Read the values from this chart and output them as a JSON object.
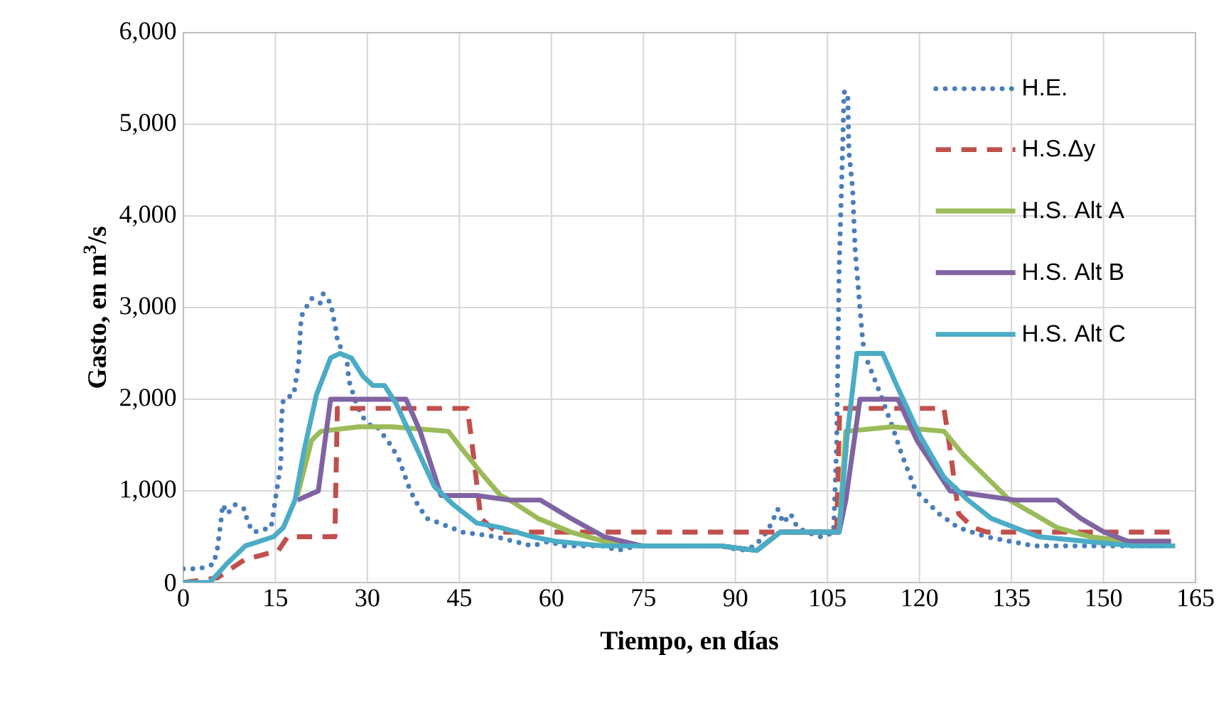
{
  "chart_data": {
    "type": "line",
    "xlabel": "Tiempo, en días",
    "ylabel": "Gasto, en m$^{3}$/s",
    "xlim": [
      0,
      165
    ],
    "ylim": [
      0,
      6000
    ],
    "xticks": [
      0,
      15,
      30,
      45,
      60,
      75,
      90,
      105,
      120,
      135,
      150,
      165
    ],
    "yticks": [
      0,
      {
        "value": 1000,
        "label": "1,000"
      },
      {
        "value": 2000,
        "label": "2,000"
      },
      {
        "value": 3000,
        "label": "3,000"
      },
      {
        "value": 4000,
        "label": "4,000"
      },
      {
        "value": 5000,
        "label": "5,000"
      },
      {
        "value": 6000,
        "label": "6,000"
      }
    ],
    "grid": true,
    "legend": "right",
    "series": [
      {
        "name": "H.E.",
        "color": "#4a7ebb",
        "line_style": "dotted",
        "x": [
          0,
          2.6,
          4.9,
          5.5,
          6.1,
          6.4,
          7.2,
          8.4,
          10,
          10.5,
          11.5,
          14.3,
          15.1,
          15.9,
          16,
          16.3,
          18,
          18.8,
          19.2,
          20,
          20.9,
          22.3,
          22.8,
          24,
          24.9,
          25.1,
          26.7,
          27,
          28.2,
          29.3,
          30.7,
          31.6,
          33.8,
          35.1,
          37,
          38.2,
          39.7,
          41.7,
          45.5,
          50.9,
          53.8,
          56.9,
          59.6,
          61.9,
          64.6,
          68.5,
          70.8,
          73.9,
          77.7,
          81.6,
          84.7,
          87.8,
          90.9,
          93.2,
          95.1,
          95.9,
          96.9,
          97.8,
          99,
          100.1,
          101.7,
          103.6,
          104.4,
          106,
          106.5,
          106.9,
          107.5,
          107.7,
          108.3,
          108.5,
          109.1,
          109.5,
          110.1,
          110.6,
          111,
          113.1,
          115.6,
          117.1,
          119.4,
          123.2,
          126.3,
          130.9,
          134.7,
          138.6,
          146.3,
          154,
          160.2
        ],
        "values": [
          150,
          150,
          200,
          350,
          650,
          850,
          750,
          850,
          800,
          650,
          550,
          600,
          950,
          1300,
          1800,
          2000,
          2050,
          2400,
          2900,
          3000,
          3100,
          3050,
          3150,
          3050,
          2750,
          2650,
          2400,
          2200,
          1950,
          1800,
          1700,
          1700,
          1500,
          1350,
          1000,
          850,
          700,
          650,
          550,
          500,
          450,
          400,
          450,
          400,
          400,
          400,
          350,
          400,
          400,
          400,
          400,
          400,
          350,
          400,
          550,
          650,
          800,
          650,
          750,
          600,
          550,
          500,
          500,
          550,
          1500,
          3400,
          4800,
          5350,
          5350,
          4700,
          4300,
          3650,
          3150,
          2750,
          2500,
          2150,
          1700,
          1400,
          1000,
          750,
          600,
          500,
          450,
          400,
          400,
          400,
          400
        ]
      },
      {
        "name": "H.S.Δy",
        "color": "#c0504d",
        "line_style": "dashed",
        "x": [
          0,
          5.5,
          10,
          12.8,
          15.5,
          17,
          24.7,
          25.1,
          46.3,
          47,
          48.5,
          51,
          106.5,
          107,
          124,
          124.9,
          126.4,
          128.7,
          131,
          138.6,
          161
        ],
        "values": [
          0,
          50,
          250,
          300,
          350,
          500,
          500,
          1900,
          1900,
          1550,
          700,
          550,
          550,
          1900,
          1900,
          1500,
          750,
          600,
          550,
          550,
          550
        ]
      },
      {
        "name": "H.S. Alt A",
        "color": "#9bbb59",
        "line_style": "solid",
        "x": [
          18.6,
          20.9,
          22.4,
          28.6,
          34,
          43.2,
          45.5,
          48.5,
          51.7,
          53.2,
          57.8,
          63.2,
          68.6,
          75,
          87.6,
          93.5,
          97.3,
          100.4,
          104.2,
          106.9,
          108,
          115.6,
          124,
          127.1,
          130.9,
          134.7,
          138.6,
          142.4,
          147.8,
          154,
          161
        ],
        "values": [
          950,
          1550,
          1650,
          1700,
          1700,
          1650,
          1450,
          1200,
          950,
          900,
          700,
          550,
          450,
          400,
          400,
          350,
          550,
          550,
          550,
          550,
          1650,
          1700,
          1650,
          1400,
          1150,
          900,
          750,
          600,
          500,
          450,
          450
        ]
      },
      {
        "name": "H.S. Alt B",
        "color": "#8064a2",
        "line_style": "solid",
        "x": [
          18.6,
          22,
          24,
          36.3,
          38.6,
          42,
          47.8,
          53.2,
          58.2,
          63.2,
          68.6,
          74.7,
          87.6,
          93.5,
          97.3,
          100.4,
          104.2,
          106.9,
          108,
          110.3,
          116.5,
          119.6,
          125,
          135.5,
          142.4,
          146.3,
          150.1,
          154,
          161
        ],
        "values": [
          900,
          1000,
          2000,
          2000,
          1650,
          950,
          950,
          900,
          900,
          700,
          500,
          400,
          400,
          350,
          550,
          550,
          550,
          550,
          900,
          2000,
          2000,
          1550,
          1000,
          900,
          900,
          700,
          550,
          450,
          450
        ]
      },
      {
        "name": "H.S. Alt C",
        "color": "#4bacc6",
        "line_style": "solid",
        "x": [
          0,
          4.3,
          7,
          10.1,
          12.4,
          14.7,
          16.3,
          18.2,
          19.7,
          21.7,
          24,
          25.5,
          27.4,
          29.3,
          30.9,
          32.8,
          34.7,
          37.8,
          40.9,
          44,
          47.8,
          51.7,
          56.9,
          60.7,
          68.4,
          76.1,
          87.6,
          93.5,
          97.3,
          100.4,
          104.2,
          106.9,
          108.2,
          109.8,
          114,
          116.3,
          120.1,
          124,
          127.9,
          131.7,
          139.4,
          147.1,
          154.8,
          161.7
        ],
        "values": [
          0,
          0,
          200,
          400,
          450,
          500,
          600,
          900,
          1450,
          2050,
          2450,
          2500,
          2450,
          2250,
          2150,
          2150,
          1950,
          1500,
          1050,
          850,
          650,
          600,
          500,
          450,
          400,
          400,
          400,
          350,
          550,
          550,
          550,
          550,
          1600,
          2500,
          2500,
          2150,
          1600,
          1150,
          900,
          700,
          500,
          450,
          400,
          400
        ]
      }
    ]
  }
}
